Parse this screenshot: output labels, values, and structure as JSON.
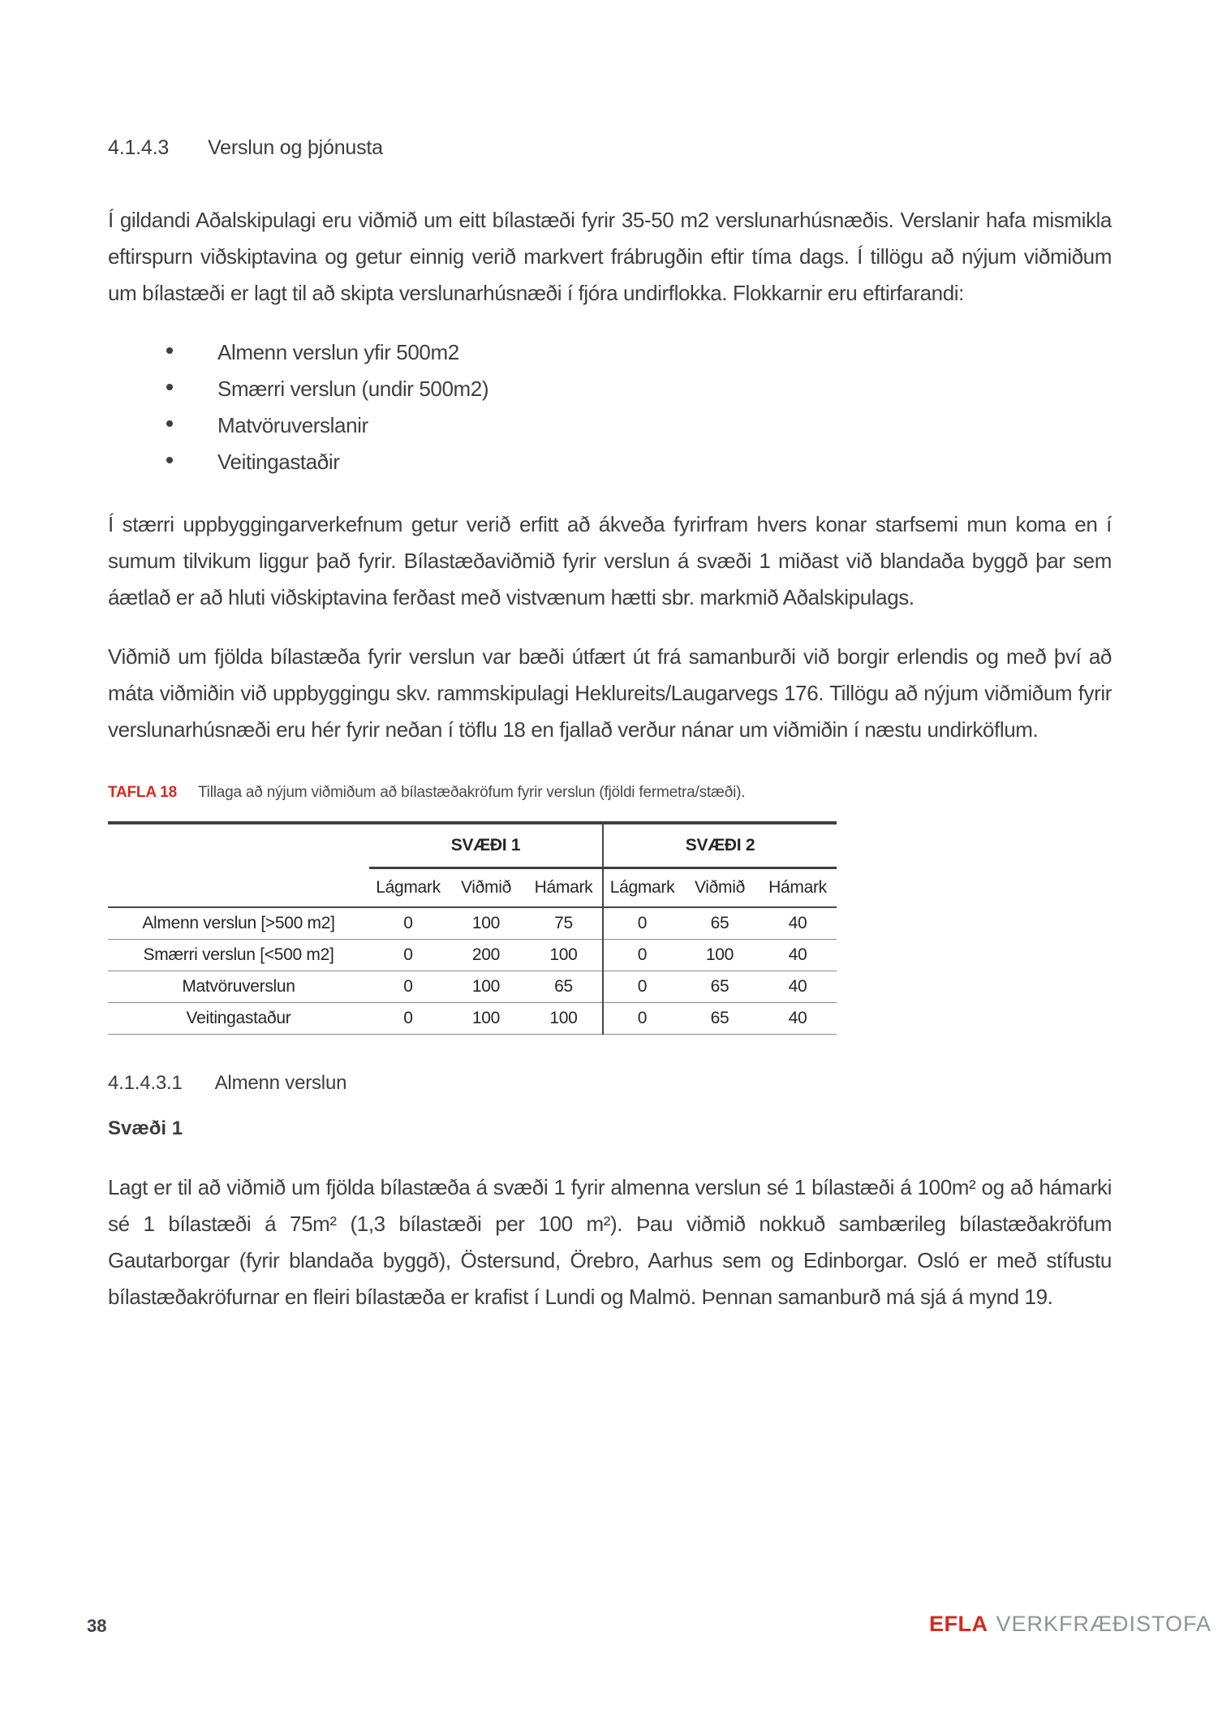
{
  "colors": {
    "accent_red": "#d7291f",
    "body_text": "#3f3f3f",
    "table_text": "#262626",
    "brand_gray": "#8c9398"
  },
  "section": {
    "number": "4.1.4.3",
    "title": "Verslun og þjónusta"
  },
  "paragraphs": {
    "p1": "Í gildandi Aðalskipulagi eru viðmið um eitt bílastæði fyrir 35-50 m2 verslunarhúsnæðis. Verslanir hafa mismikla eftirspurn viðskiptavina og getur einnig verið markvert frábrugðin eftir tíma dags. Í tillögu að nýjum viðmiðum um bílastæði er lagt til að skipta verslunarhúsnæði í fjóra undirflokka. Flokkarnir eru eftirfarandi:",
    "p2": "Í stærri uppbyggingarverkefnum getur verið erfitt að ákveða fyrirfram hvers konar starfsemi mun koma en í sumum tilvikum liggur það fyrir. Bílastæðaviðmið fyrir verslun á svæði 1 miðast við blandaða byggð þar sem áætlað er að hluti viðskiptavina ferðast með vistvænum hætti sbr. markmið Aðalskipulags.",
    "p3": "Viðmið um fjölda bílastæða fyrir verslun var bæði útfært út frá samanburði við borgir erlendis og með því að máta viðmiðin við uppbyggingu skv. rammskipulagi  Heklureits/Laugarvegs 176. Tillögu að nýjum viðmiðum fyrir verslunarhúsnæði eru hér fyrir neðan í töflu 18 en fjallað verður nánar um viðmiðin í næstu undirköflum.",
    "p4": "Lagt er til að viðmið um fjölda bílastæða á svæði 1 fyrir almenna verslun sé 1 bílastæði á 100m² og að hámarki sé 1 bílastæði á 75m² (1,3 bílastæði per 100 m²). Þau viðmið nokkuð sambærileg bílastæðakröfum Gautarborgar (fyrir blandaða byggð), Östersund, Örebro, Aarhus sem og Edinborgar. Osló er með stífustu bílastæðakröfurnar en fleiri bílastæða er krafist í Lundi og Malmö. Þennan samanburð má sjá á mynd 19."
  },
  "bullets": [
    "Almenn verslun yfir 500m2",
    "Smærri verslun (undir 500m2)",
    "Matvöruverslanir",
    "Veitingastaðir"
  ],
  "table": {
    "caption_label": "TAFLA 18",
    "caption_text": "Tillaga að nýjum viðmiðum að bílastæðakröfum fyrir verslun (fjöldi fermetra/stæði).",
    "group1": "SVÆÐI 1",
    "group2": "SVÆÐI 2",
    "sub": [
      "Lágmark",
      "Viðmið",
      "Hámark"
    ],
    "rows": [
      {
        "label": "Almenn verslun [>500 m2]",
        "values": [
          "0",
          "100",
          "75",
          "0",
          "65",
          "40"
        ]
      },
      {
        "label": "Smærri verslun [<500 m2]",
        "values": [
          "0",
          "200",
          "100",
          "0",
          "100",
          "40"
        ]
      },
      {
        "label": "Matvöruverslun",
        "values": [
          "0",
          "100",
          "65",
          "0",
          "65",
          "40"
        ]
      },
      {
        "label": "Veitingastaður",
        "values": [
          "0",
          "100",
          "100",
          "0",
          "65",
          "40"
        ]
      }
    ]
  },
  "subsection": {
    "number": "4.1.4.3.1",
    "title": "Almenn verslun"
  },
  "area_heading": "Svæði 1",
  "footer": {
    "page_number": "38",
    "brand_name": "EFLA",
    "brand_suffix": "VERKFRÆÐISTOFA"
  }
}
